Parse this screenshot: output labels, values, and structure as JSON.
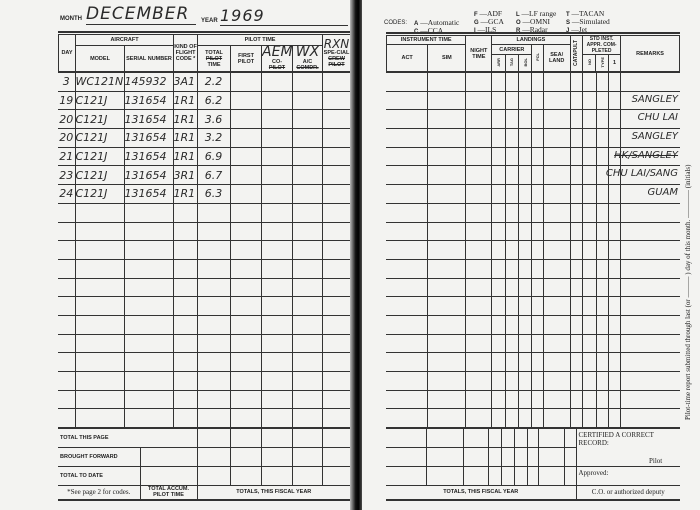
{
  "left": {
    "month_label": "MONTH",
    "month_value": "DECEMBER",
    "year_label": "YEAR",
    "year_value": "1969",
    "headers": {
      "day": "DAY",
      "aircraft": "AIRCRAFT",
      "model": "MODEL",
      "serial": "SERIAL NUMBER",
      "kind": "KIND OF FLIGHT CODE *",
      "pilot_time": "PILOT TIME",
      "total_a": "TOTAL",
      "total_struck": "PILOT",
      "total_b": "TIME",
      "first_pilot": "FIRST PILOT",
      "copilot_a": "CO-",
      "copilot_struck": "PILOT",
      "ac_a": "A/C",
      "ac_struck": "COMDR.",
      "special_a": "SPE-CIAL",
      "special_struck": "CREW PILOT"
    },
    "handwritten_headers": {
      "copilot": "AEM",
      "ac": "WX",
      "special": "RXN"
    },
    "rows": [
      {
        "day": "3",
        "model": "WC121N",
        "serial": "145932",
        "kind": "3A1",
        "total": "2.2"
      },
      {
        "day": "19",
        "model": "C121J",
        "serial": "131654",
        "kind": "1R1",
        "total": "6.2"
      },
      {
        "day": "20",
        "model": "C121J",
        "serial": "131654",
        "kind": "1R1",
        "total": "3.6"
      },
      {
        "day": "20",
        "model": "C121J",
        "serial": "131654",
        "kind": "1R1",
        "total": "3.2"
      },
      {
        "day": "21",
        "model": "C121J",
        "serial": "131654",
        "kind": "1R1",
        "total": "6.9"
      },
      {
        "day": "23",
        "model": "C121J",
        "serial": "131654",
        "kind": "3R1",
        "total": "6.7"
      },
      {
        "day": "24",
        "model": "C121J",
        "serial": "131654",
        "kind": "1R1",
        "total": "6.3"
      }
    ],
    "footer": {
      "total_this_page": "TOTAL THIS PAGE",
      "brought_forward": "BROUGHT FORWARD",
      "total_to_date": "TOTAL TO DATE",
      "see_page": "*See page 2 for codes.",
      "total_accum": "TOTAL ACCUM. PILOT TIME",
      "fiscal": "TOTALS, THIS FISCAL YEAR"
    }
  },
  "right": {
    "codes_label": "CODES:",
    "codes": [
      [
        "A",
        "Automatic"
      ],
      [
        "C",
        "CCA"
      ],
      [
        "F",
        "ADF"
      ],
      [
        "G",
        "GCA"
      ],
      [
        "I",
        "ILS"
      ],
      [
        "L",
        "LF range"
      ],
      [
        "O",
        "OMNI"
      ],
      [
        "R",
        "Radar"
      ],
      [
        "T",
        "TACAN"
      ],
      [
        "S",
        "Simulated"
      ],
      [
        "J",
        "Jet"
      ]
    ],
    "headers": {
      "instrument_time": "INSTRUMENT TIME",
      "act": "ACT",
      "sim": "SIM",
      "night": "NIGHT TIME",
      "landings": "LANDINGS",
      "carrier": "CARRIER",
      "arr": "ARR",
      "tag": "TAG",
      "bol": "BOL",
      "fcl": "FCL",
      "sea_land": "SEA/ LAND",
      "catapult": "CATAPULT",
      "std_inst": "STD INST. APPR. COM- PLETED",
      "no": "NO",
      "type": "TYPE",
      "one": "1",
      "remarks": "REMARKS"
    },
    "remarks": [
      "",
      "SANGLEY",
      "CHU LAI",
      "SANGLEY",
      "HK/SANGLEY",
      "CHU LAI/SANG",
      "GUAM"
    ],
    "struck_remark_row": 4,
    "certified": "CERTIFIED A CORRECT RECORD:",
    "pilot": "Pilot",
    "approved": "Approved:",
    "co": "C.O. or authorized deputy",
    "fiscal": "TOTALS, THIS FISCAL YEAR",
    "side_note": "Pilot-time report submitted through last (or ——— ) day of this month. ———— (initials)"
  }
}
